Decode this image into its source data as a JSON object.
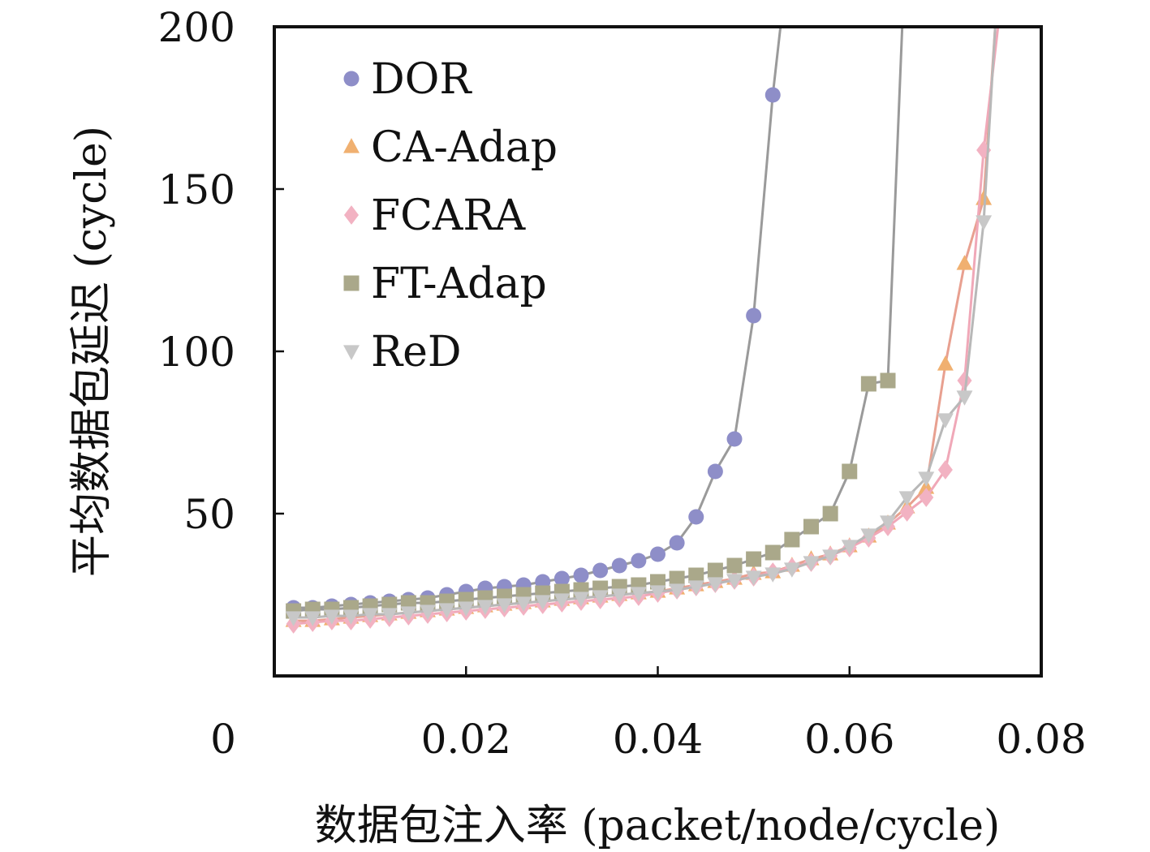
{
  "chart_data": {
    "type": "line",
    "title": "",
    "xlabel": "数据包注入率 (packet/node/cycle)",
    "ylabel": "平均数据包延迟 (cycle)",
    "xlim": [
      0,
      0.08
    ],
    "ylim": [
      0,
      200
    ],
    "x_ticks": [
      "0",
      "0.02",
      "0.04",
      "0.06",
      "0.08"
    ],
    "y_ticks": [
      "50",
      "100",
      "150",
      "200"
    ],
    "grid": false,
    "legend": "top-left",
    "series": [
      {
        "name": "DOR",
        "marker": "circle",
        "color": "#8e8ec8",
        "line_color": "#9a9a9a",
        "x": [
          0.002,
          0.004,
          0.006,
          0.008,
          0.01,
          0.012,
          0.014,
          0.016,
          0.018,
          0.02,
          0.022,
          0.024,
          0.026,
          0.028,
          0.03,
          0.032,
          0.034,
          0.036,
          0.038,
          0.04,
          0.042,
          0.044,
          0.046,
          0.048,
          0.05,
          0.052,
          0.0528
        ],
        "y": [
          21,
          21,
          21.5,
          22,
          22.5,
          23,
          23.5,
          24,
          25,
          26,
          27,
          27.5,
          28,
          29,
          30,
          31,
          32.5,
          34,
          35.5,
          37.5,
          41,
          49,
          63,
          73,
          111,
          179,
          200
        ]
      },
      {
        "name": "CA-Adap",
        "marker": "triangle-up",
        "color": "#f0b070",
        "line_color": "#e8a090",
        "x": [
          0.002,
          0.004,
          0.006,
          0.008,
          0.01,
          0.012,
          0.014,
          0.016,
          0.018,
          0.02,
          0.022,
          0.024,
          0.026,
          0.028,
          0.03,
          0.032,
          0.034,
          0.036,
          0.038,
          0.04,
          0.042,
          0.044,
          0.046,
          0.048,
          0.05,
          0.052,
          0.054,
          0.056,
          0.058,
          0.06,
          0.062,
          0.064,
          0.066,
          0.068,
          0.07,
          0.072,
          0.074,
          0.0752
        ],
        "y": [
          17,
          17,
          17.5,
          18,
          18.5,
          19,
          19.5,
          20,
          20.5,
          21,
          21.5,
          22,
          22.5,
          23,
          23.5,
          24,
          24.5,
          25,
          25.5,
          26,
          27,
          28,
          29,
          30,
          31.5,
          32,
          34,
          36,
          37.5,
          40,
          43,
          47,
          52,
          58,
          96,
          127,
          147,
          200
        ]
      },
      {
        "name": "FCARA",
        "marker": "diamond",
        "color": "#f2b2c2",
        "line_color": "#f0a8b8",
        "x": [
          0.002,
          0.004,
          0.006,
          0.008,
          0.01,
          0.012,
          0.014,
          0.016,
          0.018,
          0.02,
          0.022,
          0.024,
          0.026,
          0.028,
          0.03,
          0.032,
          0.034,
          0.036,
          0.038,
          0.04,
          0.042,
          0.044,
          0.046,
          0.048,
          0.05,
          0.052,
          0.054,
          0.056,
          0.058,
          0.06,
          0.062,
          0.064,
          0.066,
          0.068,
          0.07,
          0.072,
          0.074,
          0.0755
        ],
        "y": [
          16,
          16.5,
          17,
          17,
          17.5,
          18,
          18.5,
          19,
          19.5,
          20,
          20.5,
          21,
          21.5,
          22,
          22.5,
          23,
          23.5,
          24,
          24.5,
          25.5,
          26.5,
          27.5,
          28.5,
          29.5,
          30.5,
          32,
          33.5,
          35,
          37,
          39.5,
          42.5,
          46,
          50.5,
          55,
          63.5,
          91,
          162,
          200
        ]
      },
      {
        "name": "FT-Adap",
        "marker": "square",
        "color": "#aaa88a",
        "line_color": "#9a9a9a",
        "x": [
          0.002,
          0.004,
          0.006,
          0.008,
          0.01,
          0.012,
          0.014,
          0.016,
          0.018,
          0.02,
          0.022,
          0.024,
          0.026,
          0.028,
          0.03,
          0.032,
          0.034,
          0.036,
          0.038,
          0.04,
          0.042,
          0.044,
          0.046,
          0.048,
          0.05,
          0.052,
          0.054,
          0.056,
          0.058,
          0.06,
          0.062,
          0.064,
          0.0655
        ],
        "y": [
          20,
          20.5,
          20.5,
          21,
          21.5,
          22,
          22.5,
          22.5,
          23,
          23.5,
          24,
          24.5,
          25,
          25.5,
          26,
          26.5,
          27,
          27.5,
          28,
          29,
          30,
          31,
          32.5,
          34,
          36,
          38,
          42,
          46,
          50,
          63,
          90,
          91,
          200
        ]
      },
      {
        "name": "ReD",
        "marker": "triangle-down",
        "color": "#c8c8c8",
        "line_color": "#b8b8b8",
        "x": [
          0.002,
          0.004,
          0.006,
          0.008,
          0.01,
          0.012,
          0.014,
          0.016,
          0.018,
          0.02,
          0.022,
          0.024,
          0.026,
          0.028,
          0.03,
          0.032,
          0.034,
          0.036,
          0.038,
          0.04,
          0.042,
          0.044,
          0.046,
          0.048,
          0.05,
          0.052,
          0.054,
          0.056,
          0.058,
          0.06,
          0.062,
          0.064,
          0.066,
          0.068,
          0.07,
          0.072,
          0.074,
          0.0752
        ],
        "y": [
          18,
          18,
          18.5,
          18.5,
          19,
          19,
          19.5,
          20,
          20.5,
          21,
          21.5,
          22,
          22.5,
          23,
          23.5,
          24,
          24.5,
          25,
          25.5,
          26,
          26.5,
          27.5,
          28.5,
          29.5,
          30.5,
          31.5,
          33,
          35,
          37,
          40,
          43.5,
          47.5,
          55,
          61,
          79,
          86,
          140,
          200
        ]
      }
    ]
  }
}
